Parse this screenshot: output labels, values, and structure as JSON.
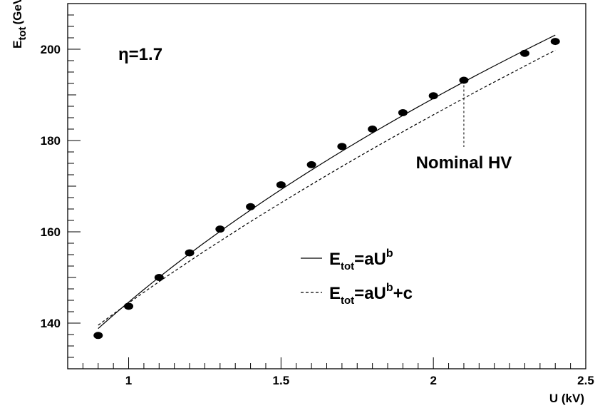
{
  "chart_data": {
    "type": "scatter",
    "xlabel": "U (kV)",
    "ylabel_main": "E",
    "ylabel_sub": "tot",
    "ylabel_unit": "(GeV)",
    "xlim": [
      0.8,
      2.5
    ],
    "ylim": [
      130,
      210
    ],
    "x_ticks": [
      1,
      1.5,
      2,
      2.5
    ],
    "x_tick_labels": [
      "1",
      "1.5",
      "2",
      "2.5"
    ],
    "y_ticks": [
      140,
      160,
      180,
      200
    ],
    "y_tick_labels": [
      "140",
      "160",
      "180",
      "200"
    ],
    "grid": false,
    "eta_label": "η=1.7",
    "annotation": {
      "text": "Nominal HV",
      "x": 2.1
    },
    "points": {
      "x": [
        0.9,
        1.0,
        1.1,
        1.2,
        1.3,
        1.4,
        1.5,
        1.6,
        1.7,
        1.8,
        1.9,
        2.0,
        2.1,
        2.3,
        2.4
      ],
      "y": [
        137.3,
        143.7,
        150.0,
        155.4,
        160.6,
        165.5,
        170.3,
        174.7,
        178.7,
        182.5,
        186.1,
        189.8,
        193.2,
        199.1,
        201.7
      ]
    },
    "series": [
      {
        "name": "E_tot=aU^b",
        "style": "solid",
        "x_range": [
          0.9,
          2.4
        ],
        "a": 144.6,
        "b": 0.388,
        "c": 0
      },
      {
        "name": "E_tot=aU^b+c",
        "style": "dashed",
        "x_range": [
          0.9,
          2.4
        ],
        "a": 76.8,
        "b": 0.62,
        "c": 67.6
      }
    ],
    "legend": {
      "position": "center-right",
      "entries": [
        {
          "style": "solid",
          "main": "E",
          "sub": "tot",
          "rest": "=aU",
          "sup": "b",
          "tail": ""
        },
        {
          "style": "dashed",
          "main": "E",
          "sub": "tot",
          "rest": "=aU",
          "sup": "b",
          "tail": "+c"
        }
      ]
    }
  }
}
